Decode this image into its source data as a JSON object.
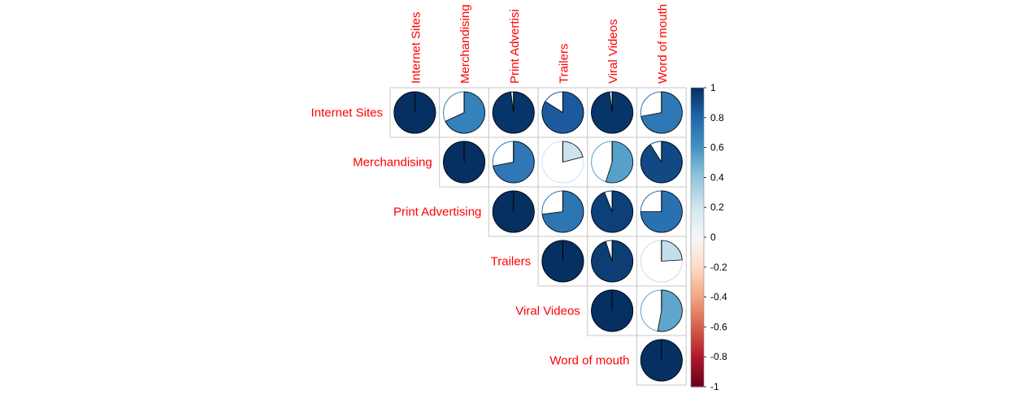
{
  "chart_data": {
    "type": "heatmap",
    "variables": [
      "Internet Sites",
      "Merchandising",
      "Print Advertising",
      "Trailers",
      "Viral Videos",
      "Word of mouth"
    ],
    "top_labels": [
      "Internet Sites",
      "Merchandising",
      "Print Advertisi",
      "Trailers",
      "Viral Videos",
      "Word of mouth"
    ],
    "row_labels": [
      "Internet Sites",
      "Merchandising",
      "Print Advertising",
      "Trailers",
      "Viral Videos",
      "Word of mouth"
    ],
    "matrix": [
      [
        1.0,
        0.68,
        0.98,
        0.84,
        0.98,
        0.72
      ],
      [
        null,
        1.0,
        0.72,
        0.21,
        0.55,
        0.91
      ],
      [
        null,
        null,
        1.0,
        0.73,
        0.94,
        0.75
      ],
      [
        null,
        null,
        null,
        1.0,
        0.95,
        0.24
      ],
      [
        null,
        null,
        null,
        null,
        1.0,
        0.53
      ],
      [
        null,
        null,
        null,
        null,
        null,
        1.0
      ]
    ],
    "colorbar": {
      "ticks": [
        "1",
        "0.8",
        "0.6",
        "0.4",
        "0.2",
        "0",
        "-0.2",
        "-0.4",
        "-0.6",
        "-0.8",
        "-1"
      ],
      "range": [
        -1,
        1
      ]
    },
    "label_color": "#ff0000",
    "grid": true,
    "shape": "pie",
    "layout": "upper-triangle"
  }
}
